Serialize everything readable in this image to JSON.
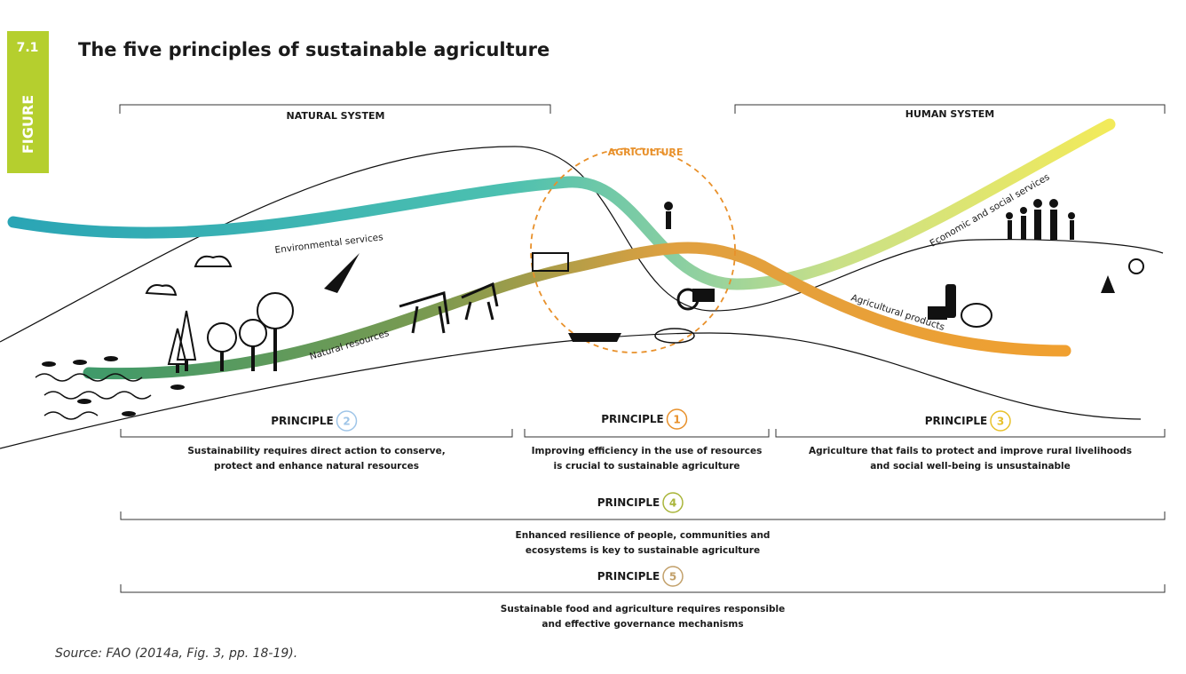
{
  "figure": {
    "number": "7.1",
    "label": "FIGURE"
  },
  "title": "The five principles of sustainable agriculture",
  "systems": {
    "natural": "NATURAL SYSTEM",
    "human": "HUMAN SYSTEM",
    "center": "AGRICULTURE"
  },
  "flows": {
    "environmental": "Environmental services",
    "natural": "Natural resources",
    "economic": "Economic and social services",
    "products": "Agricultural products"
  },
  "principles": [
    {
      "label": "PRINCIPLE",
      "number": "2",
      "lines": [
        "Sustainability requires direct action to conserve,",
        "protect and enhance natural resources"
      ]
    },
    {
      "label": "PRINCIPLE",
      "number": "1",
      "lines": [
        "Improving efficiency in the use of resources",
        "is crucial to sustainable agriculture"
      ]
    },
    {
      "label": "PRINCIPLE",
      "number": "3",
      "lines": [
        "Agriculture that fails to protect and improve rural livelihoods",
        "and social well-being is unsustainable"
      ]
    },
    {
      "label": "PRINCIPLE",
      "number": "4",
      "lines": [
        "Enhanced resilience of people, communities and",
        "ecosystems is key to sustainable agriculture"
      ]
    },
    {
      "label": "PRINCIPLE",
      "number": "5",
      "lines": [
        "Sustainable food and agriculture requires responsible",
        "and effective governance mechanisms"
      ]
    }
  ],
  "source": "Source: FAO (2014a, Fig. 3, pp. 18-19)."
}
